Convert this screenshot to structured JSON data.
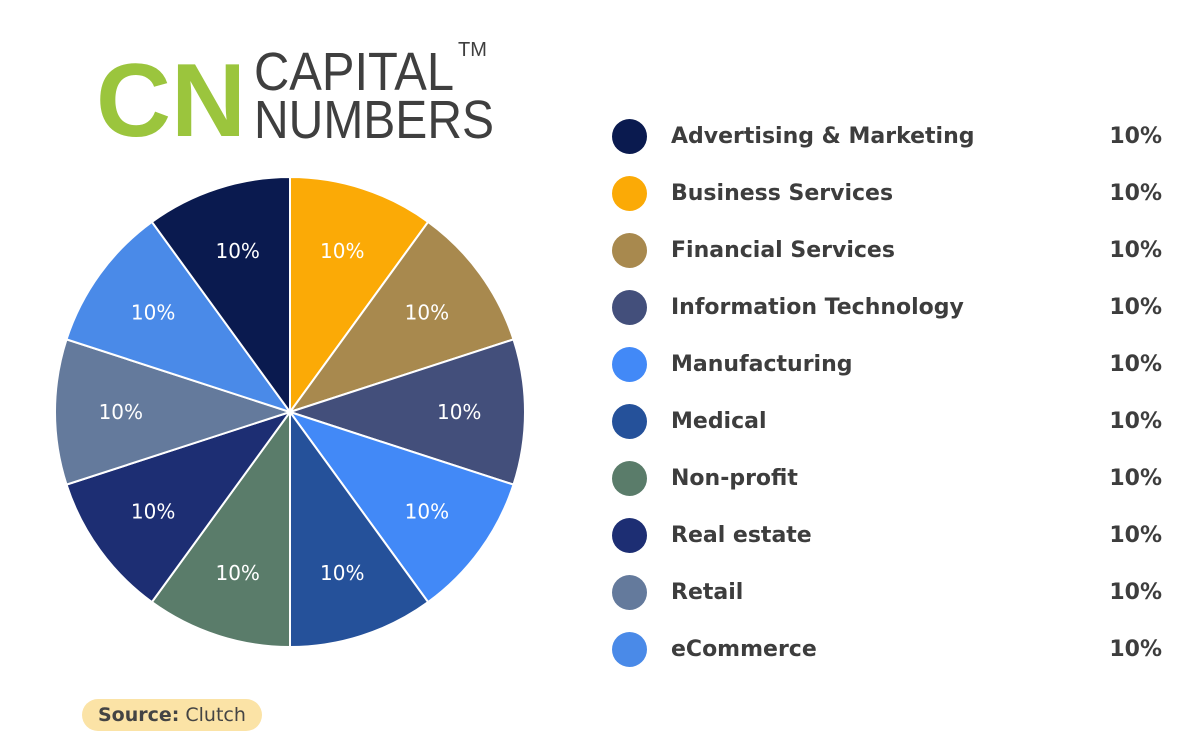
{
  "logo": {
    "monogram": "CN",
    "line1": "CAPITAL",
    "line2": "NUMBERS",
    "trademark": "TM",
    "monogram_color": "#9bc53d",
    "text_color": "#3f3f3f"
  },
  "chart_data": {
    "type": "pie",
    "categories": [
      "Advertising & Marketing",
      "Business Services",
      "Financial Services",
      "Information Technology",
      "Manufacturing",
      "Medical",
      "Non-profit",
      "Real estate",
      "Retail",
      "eCommerce"
    ],
    "values": [
      10,
      10,
      10,
      10,
      10,
      10,
      10,
      10,
      10,
      10
    ],
    "value_labels": [
      "10%",
      "10%",
      "10%",
      "10%",
      "10%",
      "10%",
      "10%",
      "10%",
      "10%",
      "10%"
    ],
    "slice_order_clockwise_from_top": [
      "Business Services",
      "Financial Services",
      "Information Technology",
      "Manufacturing",
      "Medical",
      "Non-profit",
      "Real estate",
      "Retail",
      "eCommerce",
      "Advertising & Marketing"
    ],
    "colors": {
      "Advertising & Marketing": "#0a1a4f",
      "Business Services": "#fbaa06",
      "Financial Services": "#a8894e",
      "Information Technology": "#434f7b",
      "Manufacturing": "#4289f7",
      "Medical": "#25519a",
      "Non-profit": "#5a7c6a",
      "Real estate": "#1d2e73",
      "Retail": "#647a9c",
      "eCommerce": "#4a8ae8"
    },
    "legend_placement": "right"
  },
  "source": {
    "key": "Source:",
    "value": "Clutch"
  }
}
